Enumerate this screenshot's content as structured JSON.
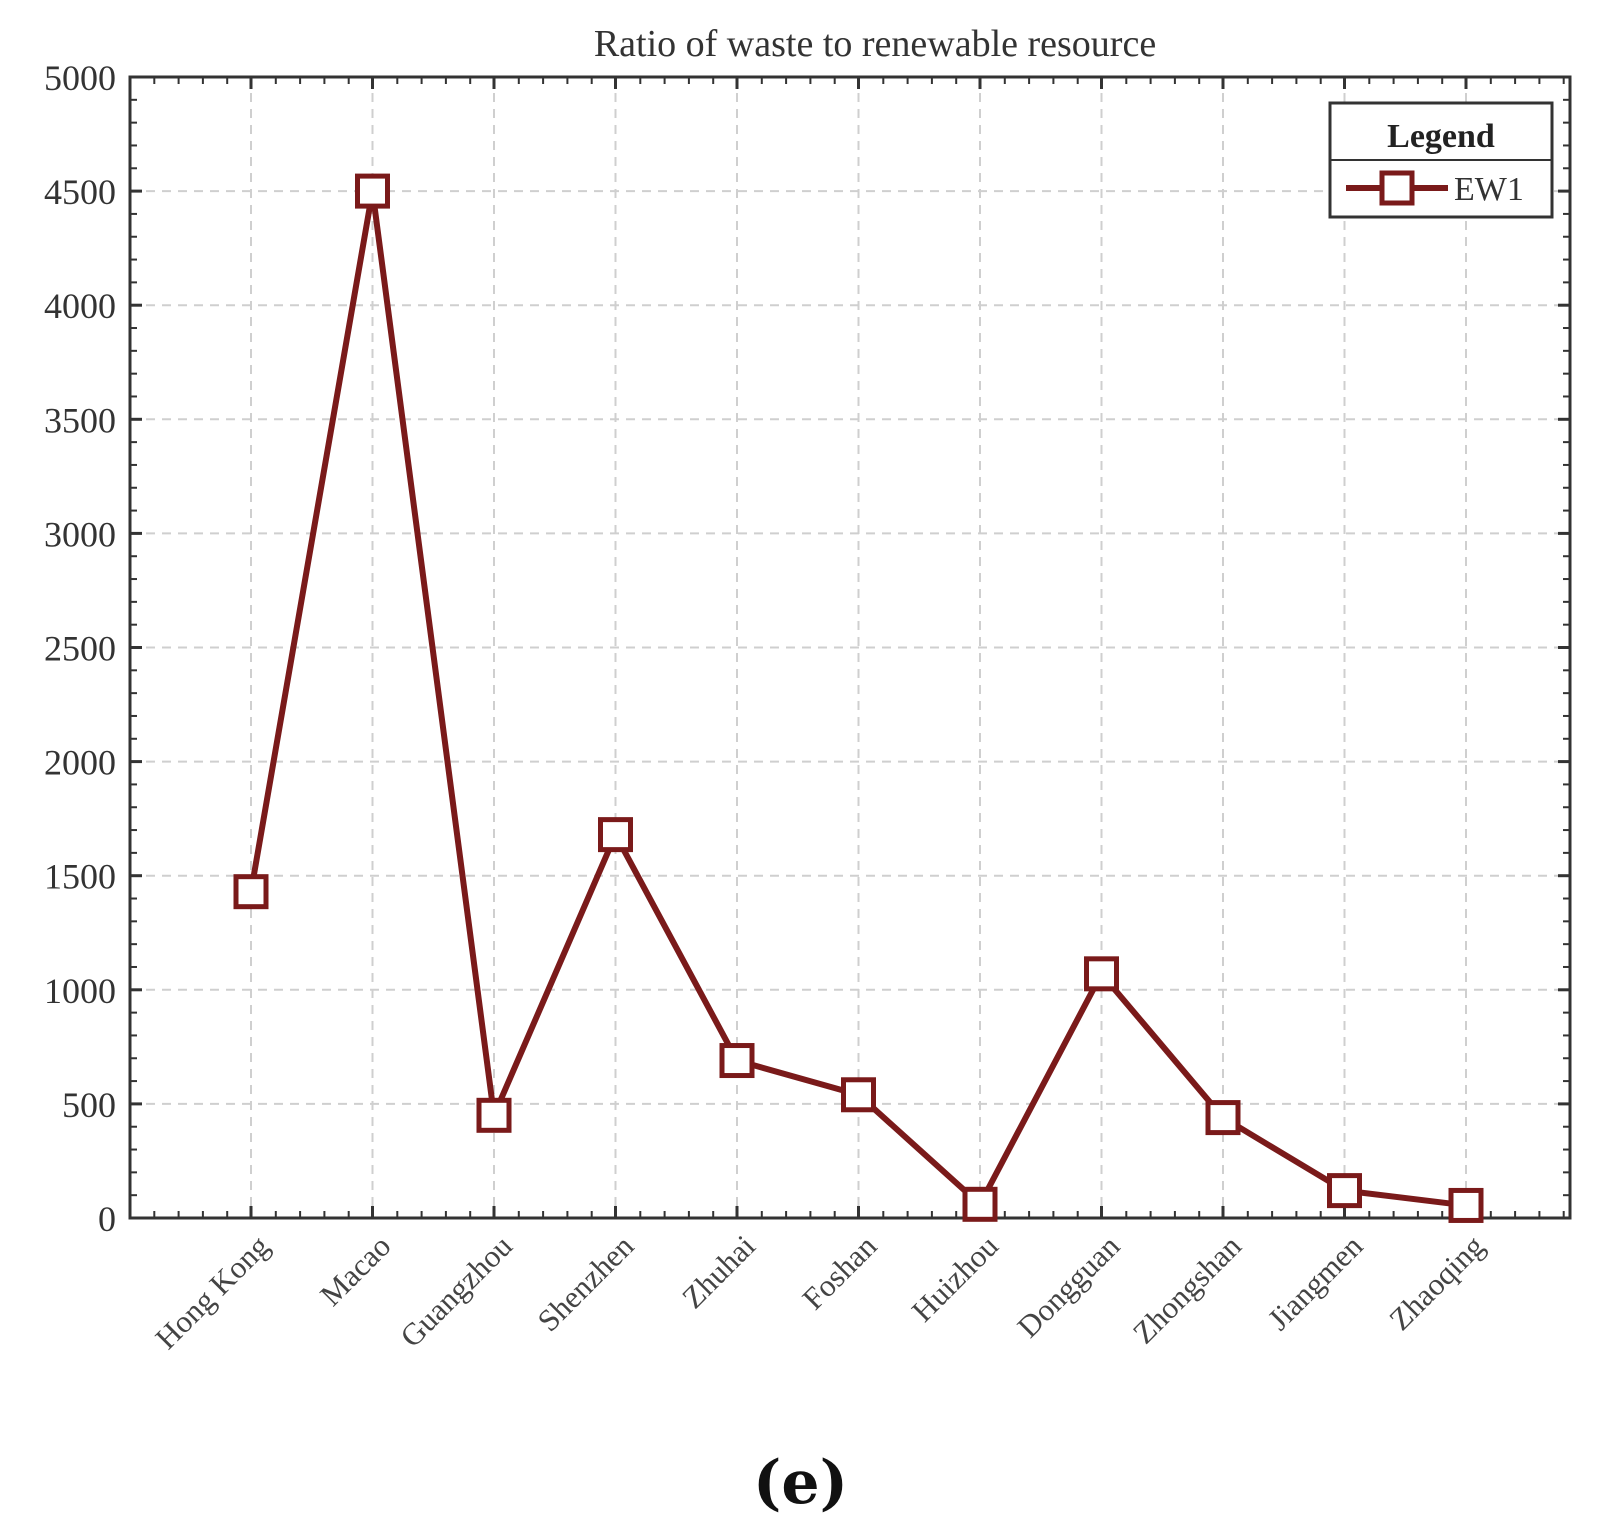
{
  "chart_data": {
    "type": "line",
    "title": "Ratio of waste to renewable resource",
    "xlabel": "",
    "ylabel": "",
    "categories": [
      "Hong Kong",
      "Macao",
      "Guangzhou",
      "Shenzhen",
      "Zhuhai",
      "Foshan",
      "Huizhou",
      "Dongguan",
      "Zhongshan",
      "Jiangmen",
      "Zhaoqing"
    ],
    "series": [
      {
        "name": "EW1",
        "color": "#7a1a1a",
        "marker": "square",
        "values": [
          1430,
          4500,
          450,
          1680,
          690,
          540,
          60,
          1070,
          440,
          120,
          55
        ]
      }
    ],
    "ylim": [
      0,
      5000
    ],
    "yticks": [
      0,
      500,
      1000,
      1500,
      2000,
      2500,
      3000,
      3500,
      4000,
      4500,
      5000
    ],
    "grid": true,
    "legend": {
      "title": "Legend",
      "position": "top-right"
    }
  },
  "caption": "(e)"
}
